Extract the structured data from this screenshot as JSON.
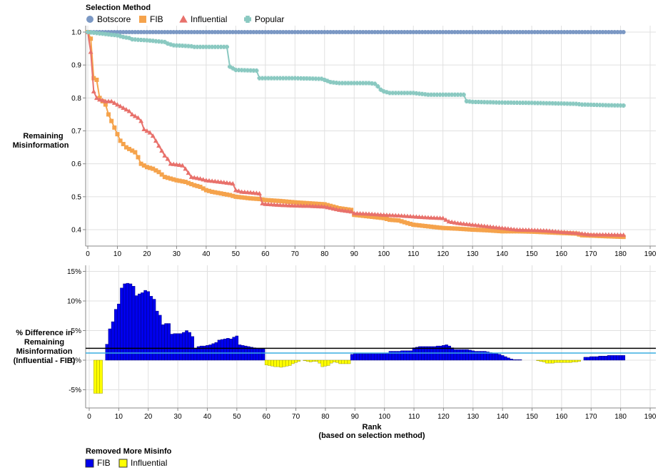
{
  "top_legend": {
    "title": "Selection Method",
    "items": [
      {
        "label": "Botscore",
        "shape": "circle",
        "color": "#7b98c4"
      },
      {
        "label": "FIB",
        "shape": "square",
        "color": "#f5a34c"
      },
      {
        "label": "Influential",
        "shape": "triangle",
        "color": "#e8716b"
      },
      {
        "label": "Popular",
        "shape": "cross",
        "color": "#8ac9c1"
      }
    ]
  },
  "bottom_legend": {
    "title": "Removed More Misinfo",
    "items": [
      {
        "label": "FIB",
        "color": "#0000ee"
      },
      {
        "label": "Influential",
        "color": "#ffff00"
      }
    ]
  },
  "chart_data": [
    {
      "type": "line",
      "ylabel": "Remaining Misinformation",
      "xlim": [
        0,
        190
      ],
      "ylim": [
        0.38,
        1.0
      ],
      "x_ticks": [
        0,
        10,
        20,
        30,
        40,
        50,
        60,
        70,
        80,
        90,
        100,
        110,
        120,
        130,
        140,
        150,
        160,
        170,
        180,
        190
      ],
      "y_ticks": [
        1.0,
        0.9,
        0.8,
        0.7,
        0.6,
        0.5,
        0.4
      ],
      "y_tick_labels": [
        "1.0",
        "0.9",
        "0.8",
        "0.7",
        "0.6",
        "0.5",
        "0.4"
      ],
      "grid": true,
      "legend_position": "top-left",
      "series": [
        {
          "name": "Botscore",
          "color": "#7b98c4",
          "points": [
            [
              0,
              1.0
            ],
            [
              181,
              1.0
            ]
          ]
        },
        {
          "name": "FIB",
          "color": "#f5a34c",
          "points": [
            [
              0,
              1.0
            ],
            [
              1,
              0.98
            ],
            [
              2,
              0.86
            ],
            [
              3,
              0.855
            ],
            [
              4,
              0.8
            ],
            [
              5,
              0.79
            ],
            [
              6,
              0.78
            ],
            [
              7,
              0.75
            ],
            [
              8,
              0.73
            ],
            [
              9,
              0.71
            ],
            [
              10,
              0.69
            ],
            [
              11,
              0.67
            ],
            [
              12,
              0.66
            ],
            [
              13,
              0.65
            ],
            [
              14,
              0.645
            ],
            [
              15,
              0.64
            ],
            [
              16,
              0.635
            ],
            [
              17,
              0.62
            ],
            [
              18,
              0.6
            ],
            [
              19,
              0.595
            ],
            [
              20,
              0.59
            ],
            [
              22,
              0.585
            ],
            [
              24,
              0.575
            ],
            [
              26,
              0.56
            ],
            [
              28,
              0.555
            ],
            [
              30,
              0.55
            ],
            [
              33,
              0.545
            ],
            [
              36,
              0.535
            ],
            [
              38,
              0.53
            ],
            [
              40,
              0.52
            ],
            [
              42,
              0.515
            ],
            [
              45,
              0.51
            ],
            [
              48,
              0.505
            ],
            [
              50,
              0.5
            ],
            [
              53,
              0.497
            ],
            [
              55,
              0.495
            ],
            [
              58,
              0.493
            ],
            [
              60,
              0.49
            ],
            [
              65,
              0.487
            ],
            [
              70,
              0.483
            ],
            [
              75,
              0.48
            ],
            [
              80,
              0.477
            ],
            [
              85,
              0.465
            ],
            [
              89,
              0.46
            ],
            [
              90,
              0.445
            ],
            [
              95,
              0.44
            ],
            [
              100,
              0.435
            ],
            [
              102,
              0.43
            ],
            [
              105,
              0.428
            ],
            [
              108,
              0.42
            ],
            [
              110,
              0.415
            ],
            [
              115,
              0.41
            ],
            [
              120,
              0.405
            ],
            [
              125,
              0.403
            ],
            [
              130,
              0.4
            ],
            [
              135,
              0.398
            ],
            [
              140,
              0.395
            ],
            [
              145,
              0.395
            ],
            [
              150,
              0.394
            ],
            [
              155,
              0.392
            ],
            [
              160,
              0.39
            ],
            [
              165,
              0.388
            ],
            [
              167,
              0.383
            ],
            [
              170,
              0.382
            ],
            [
              175,
              0.38
            ],
            [
              181,
              0.378
            ]
          ]
        },
        {
          "name": "Influential",
          "color": "#e8716b",
          "points": [
            [
              0,
              1.0
            ],
            [
              1,
              0.94
            ],
            [
              2,
              0.82
            ],
            [
              3,
              0.8
            ],
            [
              4,
              0.795
            ],
            [
              5,
              0.793
            ],
            [
              6,
              0.79
            ],
            [
              8,
              0.79
            ],
            [
              9,
              0.785
            ],
            [
              10,
              0.78
            ],
            [
              11,
              0.775
            ],
            [
              12,
              0.77
            ],
            [
              13,
              0.765
            ],
            [
              14,
              0.76
            ],
            [
              15,
              0.75
            ],
            [
              16,
              0.745
            ],
            [
              17,
              0.74
            ],
            [
              18,
              0.73
            ],
            [
              19,
              0.705
            ],
            [
              20,
              0.7
            ],
            [
              21,
              0.695
            ],
            [
              22,
              0.685
            ],
            [
              23,
              0.67
            ],
            [
              24,
              0.655
            ],
            [
              25,
              0.64
            ],
            [
              26,
              0.625
            ],
            [
              27,
              0.615
            ],
            [
              28,
              0.6
            ],
            [
              30,
              0.598
            ],
            [
              32,
              0.595
            ],
            [
              33,
              0.585
            ],
            [
              35,
              0.56
            ],
            [
              38,
              0.555
            ],
            [
              40,
              0.55
            ],
            [
              45,
              0.545
            ],
            [
              49,
              0.54
            ],
            [
              50,
              0.52
            ],
            [
              52,
              0.515
            ],
            [
              55,
              0.513
            ],
            [
              58,
              0.51
            ],
            [
              59,
              0.48
            ],
            [
              60,
              0.478
            ],
            [
              65,
              0.475
            ],
            [
              70,
              0.473
            ],
            [
              75,
              0.472
            ],
            [
              80,
              0.47
            ],
            [
              85,
              0.46
            ],
            [
              89,
              0.455
            ],
            [
              90,
              0.45
            ],
            [
              95,
              0.448
            ],
            [
              100,
              0.445
            ],
            [
              105,
              0.443
            ],
            [
              110,
              0.44
            ],
            [
              115,
              0.437
            ],
            [
              120,
              0.435
            ],
            [
              122,
              0.425
            ],
            [
              125,
              0.42
            ],
            [
              130,
              0.415
            ],
            [
              135,
              0.41
            ],
            [
              140,
              0.405
            ],
            [
              145,
              0.4
            ],
            [
              150,
              0.399
            ],
            [
              155,
              0.397
            ],
            [
              160,
              0.393
            ],
            [
              165,
              0.39
            ],
            [
              170,
              0.385
            ],
            [
              175,
              0.385
            ],
            [
              181,
              0.384
            ]
          ]
        },
        {
          "name": "Popular",
          "color": "#8ac9c1",
          "points": [
            [
              0,
              1.0
            ],
            [
              5,
              0.995
            ],
            [
              10,
              0.99
            ],
            [
              12,
              0.985
            ],
            [
              14,
              0.982
            ],
            [
              15,
              0.978
            ],
            [
              20,
              0.975
            ],
            [
              26,
              0.97
            ],
            [
              27,
              0.965
            ],
            [
              29,
              0.96
            ],
            [
              35,
              0.957
            ],
            [
              36,
              0.955
            ],
            [
              45,
              0.955
            ],
            [
              47,
              0.955
            ],
            [
              48,
              0.895
            ],
            [
              49,
              0.89
            ],
            [
              50,
              0.885
            ],
            [
              57,
              0.883
            ],
            [
              58,
              0.86
            ],
            [
              70,
              0.86
            ],
            [
              79,
              0.858
            ],
            [
              80,
              0.855
            ],
            [
              82,
              0.848
            ],
            [
              85,
              0.845
            ],
            [
              95,
              0.845
            ],
            [
              97,
              0.843
            ],
            [
              98,
              0.835
            ],
            [
              99,
              0.825
            ],
            [
              100,
              0.82
            ],
            [
              102,
              0.815
            ],
            [
              110,
              0.815
            ],
            [
              115,
              0.81
            ],
            [
              127,
              0.81
            ],
            [
              128,
              0.79
            ],
            [
              130,
              0.788
            ],
            [
              135,
              0.787
            ],
            [
              140,
              0.786
            ],
            [
              150,
              0.785
            ],
            [
              160,
              0.783
            ],
            [
              165,
              0.782
            ],
            [
              167,
              0.78
            ],
            [
              175,
              0.778
            ],
            [
              181,
              0.777
            ]
          ]
        }
      ]
    },
    {
      "type": "bar",
      "ylabel": "% Difference in Remaining Misinformation (Influential - FIB)",
      "xlabel": "Rank (based on selection method)",
      "xlabel_lines": [
        "Rank",
        "(based on selection method)"
      ],
      "ylabel_lines": [
        "% Difference in",
        "Remaining",
        "Misinformation",
        "(Influential - FIB)"
      ],
      "xlim": [
        0,
        190
      ],
      "ylim": [
        -7.5,
        15.5
      ],
      "x_ticks": [
        0,
        10,
        20,
        30,
        40,
        50,
        60,
        70,
        80,
        90,
        100,
        110,
        120,
        130,
        140,
        150,
        160,
        170,
        180,
        190
      ],
      "y_ticks": [
        15,
        10,
        5,
        0,
        -5
      ],
      "y_tick_labels": [
        "15%",
        "10%",
        "5%",
        "0%",
        "-5%"
      ],
      "grid": true,
      "legend_position": "bottom-left",
      "reference_lines": [
        {
          "value": 2.0,
          "color": "#000000"
        },
        {
          "value": 1.2,
          "color": "#3aaee0"
        }
      ],
      "x": [
        1,
        2,
        3,
        4,
        5,
        6,
        7,
        8,
        9,
        10,
        11,
        12,
        13,
        14,
        15,
        16,
        17,
        18,
        19,
        20,
        21,
        22,
        23,
        24,
        25,
        26,
        27,
        28,
        29,
        30,
        31,
        32,
        33,
        34,
        35,
        36,
        37,
        38,
        39,
        40,
        41,
        42,
        43,
        44,
        45,
        46,
        47,
        48,
        49,
        50,
        51,
        52,
        53,
        54,
        55,
        56,
        57,
        58,
        59,
        60,
        61,
        62,
        63,
        64,
        65,
        66,
        67,
        68,
        69,
        70,
        71,
        72,
        73,
        74,
        75,
        76,
        77,
        78,
        79,
        80,
        81,
        82,
        83,
        84,
        85,
        86,
        87,
        88,
        89,
        90,
        91,
        92,
        93,
        94,
        95,
        96,
        97,
        98,
        99,
        100,
        101,
        102,
        103,
        104,
        105,
        106,
        107,
        108,
        109,
        110,
        111,
        112,
        113,
        114,
        115,
        116,
        117,
        118,
        119,
        120,
        121,
        122,
        123,
        124,
        125,
        126,
        127,
        128,
        129,
        130,
        131,
        132,
        133,
        134,
        135,
        136,
        137,
        138,
        139,
        140,
        141,
        142,
        143,
        144,
        145,
        146,
        147,
        148,
        149,
        150,
        151,
        152,
        153,
        154,
        155,
        156,
        157,
        158,
        159,
        160,
        161,
        162,
        163,
        164,
        165,
        166,
        167,
        168,
        169,
        170,
        171,
        172,
        173,
        174,
        175,
        176,
        177,
        178,
        179,
        180,
        181
      ],
      "values": [
        0,
        -5.6,
        -5.6,
        -5.6,
        0,
        2.7,
        5.3,
        6.5,
        8.6,
        9.5,
        12.2,
        12.9,
        13.0,
        12.9,
        12.5,
        10.9,
        11.2,
        11.4,
        11.8,
        11.6,
        10.8,
        10.3,
        8.3,
        7.6,
        6.0,
        6.2,
        6.2,
        4.4,
        4.5,
        4.5,
        4.5,
        4.7,
        5.0,
        4.7,
        4.0,
        2.0,
        2.3,
        2.4,
        2.4,
        2.5,
        2.6,
        2.8,
        3.0,
        3.4,
        3.5,
        3.6,
        3.7,
        3.6,
        3.9,
        4.1,
        2.6,
        2.5,
        2.4,
        2.3,
        2.2,
        2.1,
        2.0,
        1.9,
        1.9,
        -0.8,
        -0.9,
        -1.0,
        -1.1,
        -1.1,
        -1.2,
        -1.1,
        -1.0,
        -0.9,
        -0.6,
        -0.4,
        -0.2,
        0.0,
        -0.1,
        -0.2,
        -0.3,
        -0.2,
        -0.2,
        -0.5,
        -1.1,
        -1.0,
        -0.9,
        -0.5,
        -0.3,
        -0.4,
        -0.6,
        -0.6,
        -0.6,
        -0.6,
        1.0,
        1.1,
        1.1,
        1.1,
        1.1,
        1.1,
        1.1,
        1.1,
        1.1,
        1.1,
        1.1,
        1.1,
        1.2,
        1.5,
        1.5,
        1.5,
        1.5,
        1.6,
        1.6,
        1.6,
        1.6,
        2.1,
        2.2,
        2.3,
        2.3,
        2.3,
        2.3,
        2.3,
        2.3,
        2.4,
        2.4,
        2.5,
        2.6,
        2.4,
        2.1,
        1.8,
        1.8,
        1.8,
        1.8,
        1.8,
        1.7,
        1.6,
        1.5,
        1.5,
        1.5,
        1.5,
        1.4,
        1.3,
        1.2,
        1.1,
        1.0,
        0.8,
        0.6,
        0.4,
        0.2,
        0.1,
        0.1,
        0.1,
        0.0,
        0.0,
        0.0,
        0.0,
        0.0,
        -0.1,
        -0.2,
        -0.3,
        -0.5,
        -0.5,
        -0.5,
        -0.4,
        -0.4,
        -0.4,
        -0.4,
        -0.4,
        -0.4,
        -0.3,
        -0.3,
        -0.2,
        0.0,
        0.5,
        0.5,
        0.6,
        0.6,
        0.6,
        0.7,
        0.7,
        0.7,
        0.8,
        0.8,
        0.8,
        0.8,
        0.8,
        0.8
      ],
      "positive_color": "#0000ee",
      "negative_color": "#ffff00"
    }
  ]
}
